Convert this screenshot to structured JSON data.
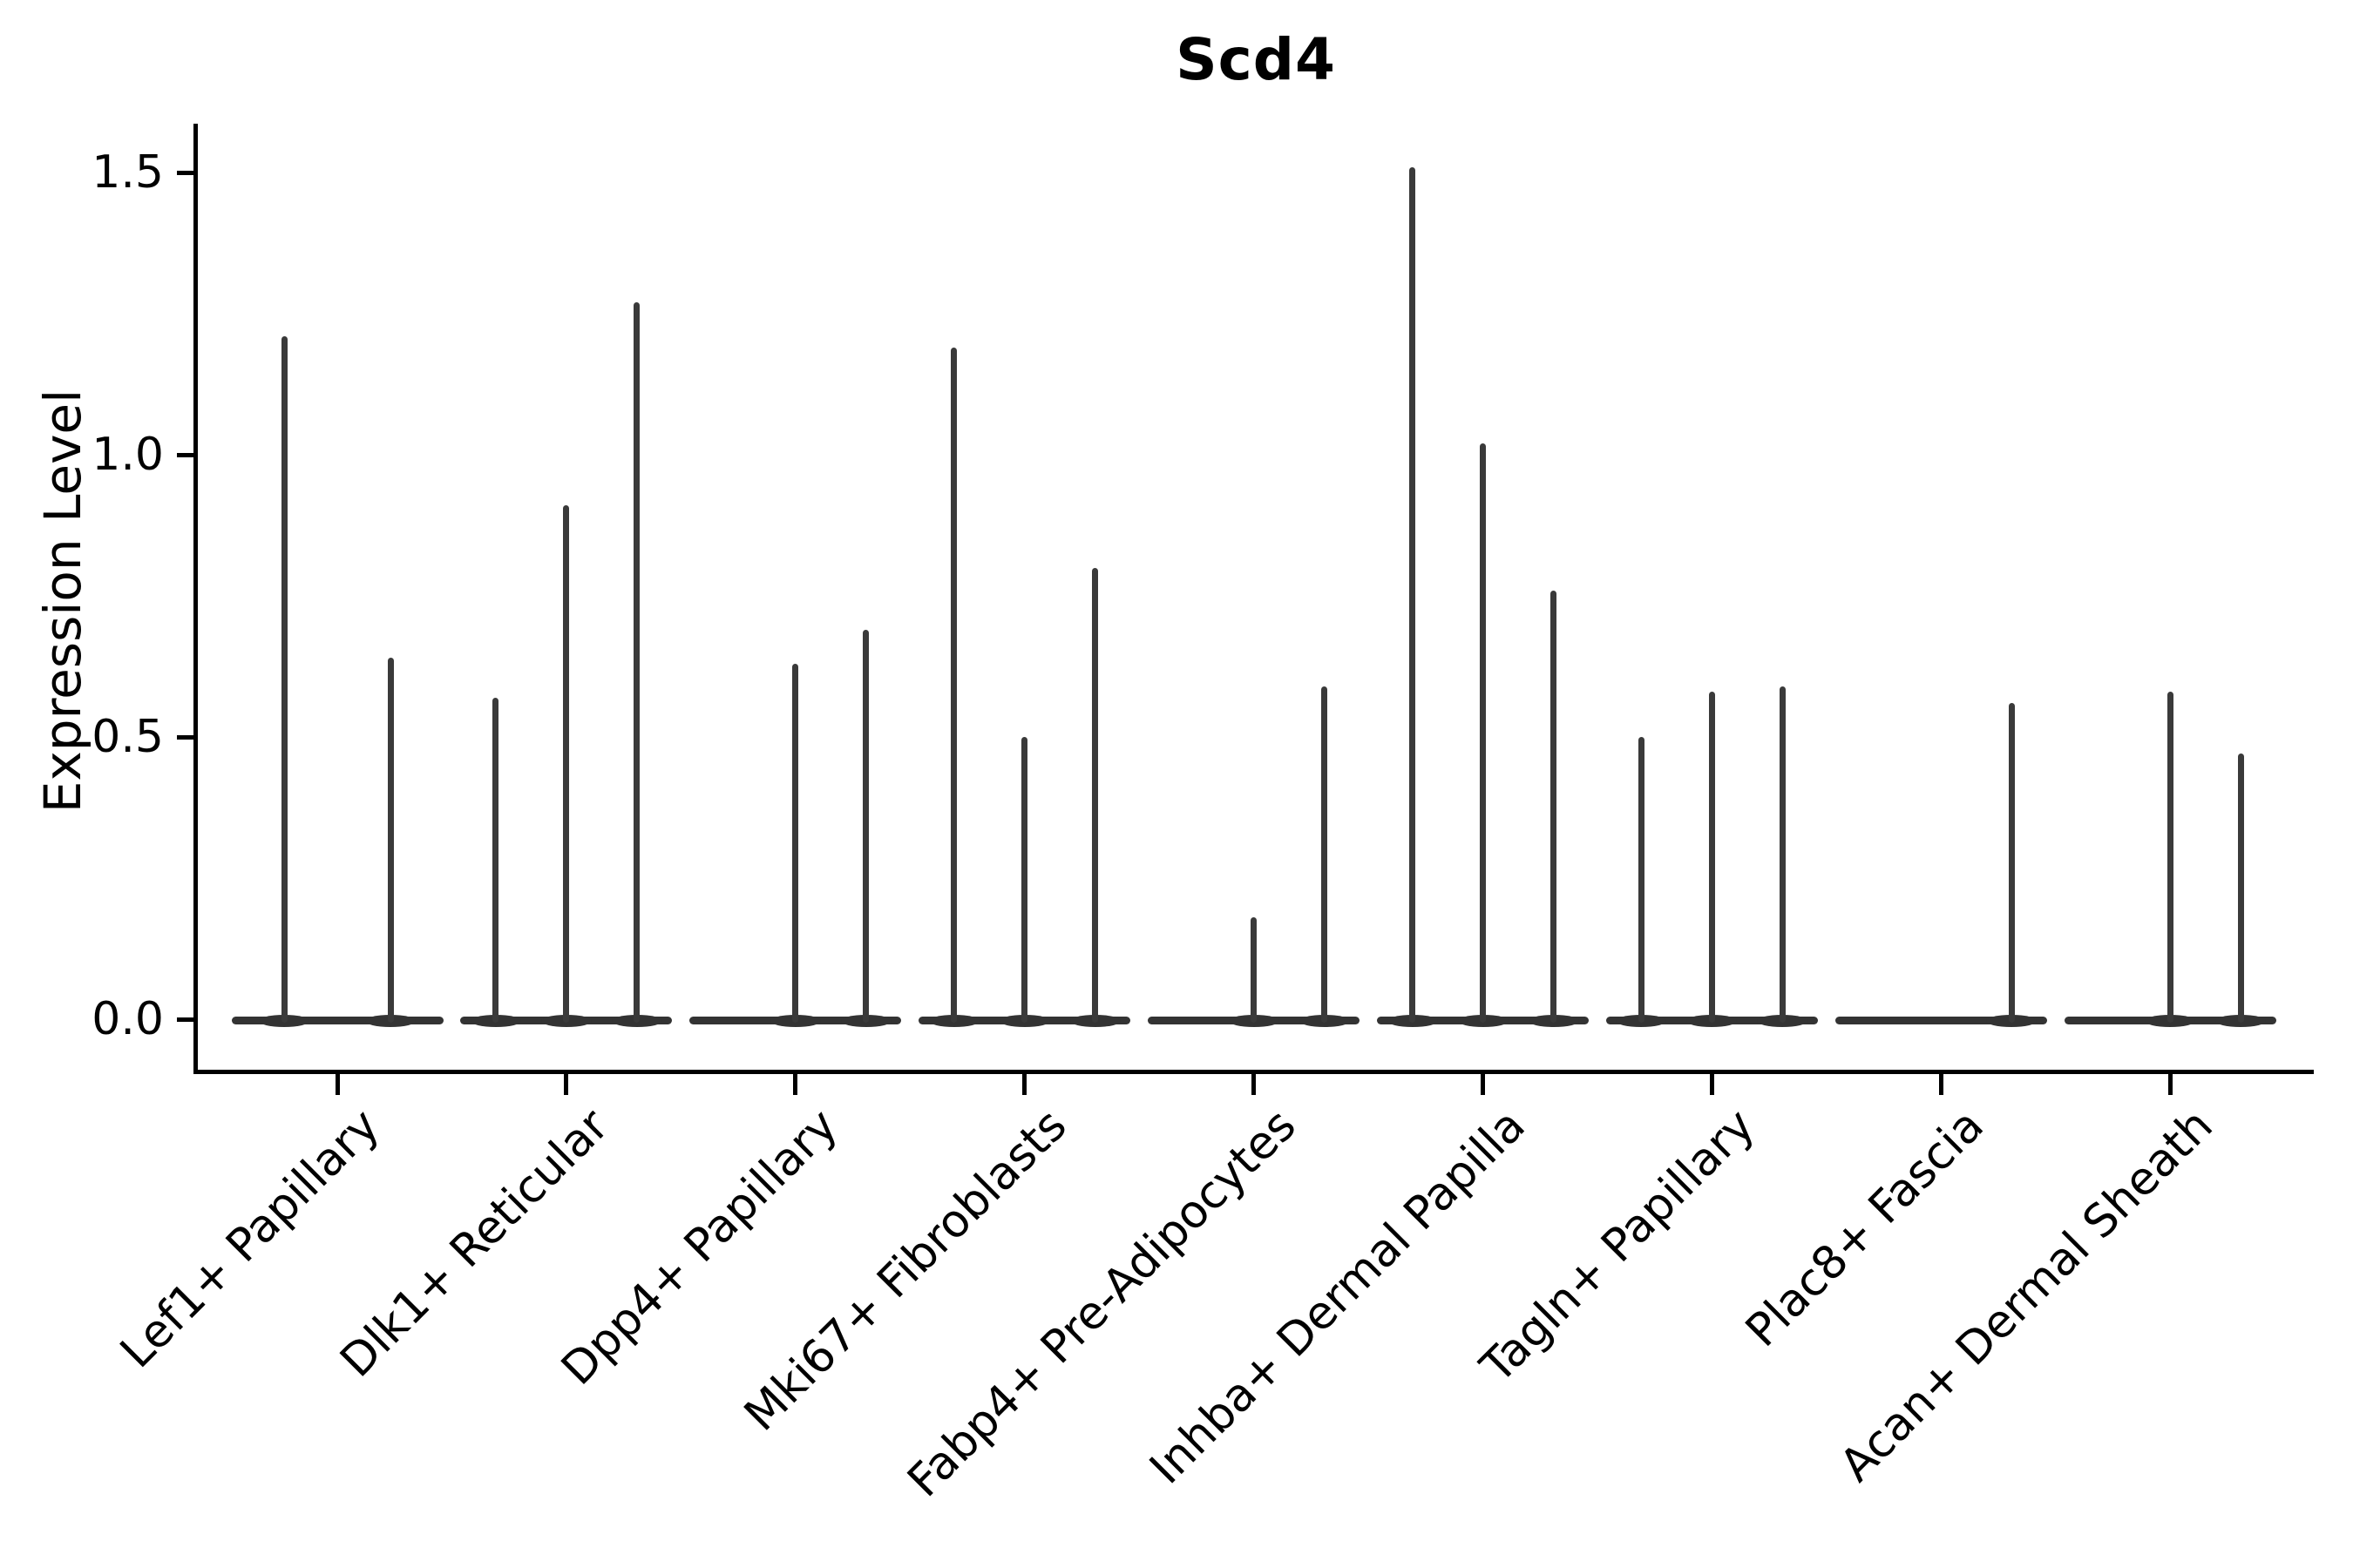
{
  "chart_data": {
    "type": "violin",
    "title": "Scd4",
    "ylabel": "Expression Level",
    "xlabel": "",
    "ytick_labels": [
      "0.0",
      "0.5",
      "1.0",
      "1.5"
    ],
    "ytick_values": [
      0.0,
      0.5,
      1.0,
      1.5
    ],
    "ylim": [
      0.0,
      1.57
    ],
    "legend": "none",
    "grid": false,
    "description": "Violin plot of Scd4 expression; violins are collapsed to thin vertical spikes at each dodge position with flat bases at 0.",
    "categories": [
      {
        "label": "Lef1+ Papillary",
        "spikes": [
          {
            "dx": -61,
            "max": 1.21
          },
          {
            "dx": 61,
            "max": 0.64
          }
        ]
      },
      {
        "label": "Dlk1+ Reticular",
        "spikes": [
          {
            "dx": -81,
            "max": 0.57
          },
          {
            "dx": 0,
            "max": 0.91
          },
          {
            "dx": 81,
            "max": 1.27
          }
        ]
      },
      {
        "label": "Dpp4+ Papillary",
        "spikes": [
          {
            "dx": 0,
            "max": 0.63
          },
          {
            "dx": 81,
            "max": 0.69
          }
        ]
      },
      {
        "label": "Mki67+ Fibroblasts",
        "spikes": [
          {
            "dx": -81,
            "max": 1.19
          },
          {
            "dx": 0,
            "max": 0.5
          },
          {
            "dx": 81,
            "max": 0.8
          }
        ]
      },
      {
        "label": "Fabp4+ Pre-Adipocytes",
        "spikes": [
          {
            "dx": 0,
            "max": 0.18
          },
          {
            "dx": 81,
            "max": 0.59
          }
        ]
      },
      {
        "label": "Inhba+ Dermal Papilla",
        "spikes": [
          {
            "dx": -81,
            "max": 1.51
          },
          {
            "dx": 0,
            "max": 1.02
          },
          {
            "dx": 81,
            "max": 0.76
          }
        ]
      },
      {
        "label": "Tagln+ Papillary",
        "spikes": [
          {
            "dx": -81,
            "max": 0.5
          },
          {
            "dx": 0,
            "max": 0.58
          },
          {
            "dx": 81,
            "max": 0.59
          }
        ]
      },
      {
        "label": "Plac8+ Fascia",
        "spikes": [
          {
            "dx": 81,
            "max": 0.56
          }
        ]
      },
      {
        "label": "Acan+ Dermal Sheath",
        "spikes": [
          {
            "dx": 0,
            "max": 0.58
          },
          {
            "dx": 81,
            "max": 0.47
          }
        ]
      }
    ],
    "colors": {
      "violin_line": "#3a3a3a",
      "violin_base": "#333333",
      "axis": "#000000",
      "text": "#000000",
      "background": "#ffffff"
    }
  }
}
